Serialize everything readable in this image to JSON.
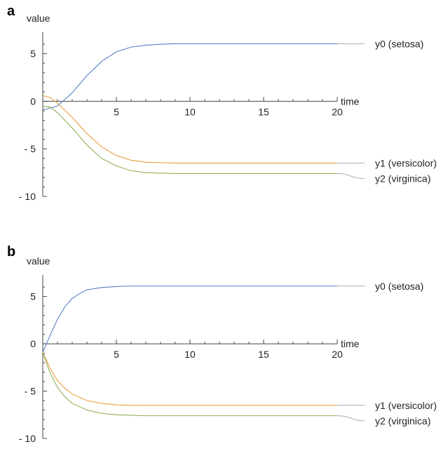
{
  "chart_data": [
    {
      "panel": "a",
      "type": "line",
      "xlabel": "time",
      "ylabel": "value",
      "xlim": [
        0,
        20
      ],
      "ylim": [
        -10,
        7
      ],
      "xticks": [
        5,
        10,
        15,
        20
      ],
      "yticks": [
        5,
        0,
        -5,
        -10
      ],
      "grid": false,
      "legend": "right",
      "series": [
        {
          "name": "y0 (setosa)",
          "color": "#5b7fc4",
          "x": [
            0,
            1,
            2,
            3,
            4,
            5,
            6,
            7,
            8,
            9,
            10,
            12,
            14,
            16,
            18,
            20
          ],
          "y": [
            -0.9,
            -0.5,
            0.9,
            2.7,
            4.2,
            5.2,
            5.7,
            5.9,
            6.0,
            6.05,
            6.05,
            6.05,
            6.05,
            6.05,
            6.05,
            6.05
          ]
        },
        {
          "name": "y1 (versicolor)",
          "color": "#e5a13c",
          "x": [
            0,
            0.5,
            1,
            2,
            3,
            4,
            5,
            6,
            7,
            8,
            9,
            10,
            12,
            14,
            16,
            18,
            20
          ],
          "y": [
            0.6,
            0.4,
            -0.2,
            -1.7,
            -3.4,
            -4.8,
            -5.7,
            -6.2,
            -6.4,
            -6.45,
            -6.5,
            -6.5,
            -6.5,
            -6.5,
            -6.5,
            -6.5,
            -6.5
          ]
        },
        {
          "name": "y2 (virginica)",
          "color": "#8fb05a",
          "x": [
            0,
            0.5,
            1,
            2,
            3,
            4,
            5,
            6,
            7,
            8,
            9,
            10,
            12,
            14,
            16,
            18,
            20
          ],
          "y": [
            -0.5,
            -0.6,
            -1.2,
            -2.8,
            -4.6,
            -6.0,
            -6.8,
            -7.3,
            -7.5,
            -7.55,
            -7.6,
            -7.6,
            -7.6,
            -7.6,
            -7.6,
            -7.6,
            -7.6
          ]
        }
      ]
    },
    {
      "panel": "b",
      "type": "line",
      "xlabel": "time",
      "ylabel": "value",
      "xlim": [
        0,
        20
      ],
      "ylim": [
        -10,
        7
      ],
      "xticks": [
        5,
        10,
        15,
        20
      ],
      "yticks": [
        5,
        0,
        -5,
        -10
      ],
      "grid": false,
      "legend": "right",
      "series": [
        {
          "name": "y0 (setosa)",
          "color": "#5b7fc4",
          "x": [
            0,
            0.5,
            1,
            1.5,
            2,
            2.5,
            3,
            4,
            5,
            6,
            7,
            8,
            10,
            12,
            14,
            16,
            18,
            20
          ],
          "y": [
            -0.9,
            0.9,
            2.6,
            3.9,
            4.8,
            5.3,
            5.7,
            5.95,
            6.05,
            6.1,
            6.1,
            6.1,
            6.1,
            6.1,
            6.1,
            6.1,
            6.1,
            6.1
          ]
        },
        {
          "name": "y1 (versicolor)",
          "color": "#e5a13c",
          "x": [
            0,
            0.5,
            1,
            1.5,
            2,
            3,
            4,
            5,
            6,
            7,
            8,
            10,
            12,
            14,
            16,
            18,
            20
          ],
          "y": [
            -0.9,
            -2.6,
            -3.9,
            -4.7,
            -5.3,
            -6.0,
            -6.3,
            -6.45,
            -6.5,
            -6.5,
            -6.5,
            -6.5,
            -6.5,
            -6.5,
            -6.5,
            -6.5,
            -6.5
          ]
        },
        {
          "name": "y2 (virginica)",
          "color": "#8fb05a",
          "x": [
            0,
            0.5,
            1,
            1.5,
            2,
            3,
            4,
            5,
            6,
            7,
            8,
            10,
            12,
            14,
            16,
            18,
            20
          ],
          "y": [
            -0.9,
            -3.1,
            -4.6,
            -5.6,
            -6.3,
            -7.0,
            -7.35,
            -7.5,
            -7.55,
            -7.6,
            -7.6,
            -7.6,
            -7.6,
            -7.6,
            -7.6,
            -7.6,
            -7.6
          ]
        }
      ]
    }
  ]
}
